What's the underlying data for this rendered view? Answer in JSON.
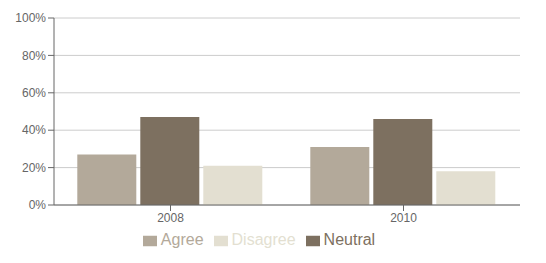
{
  "chart_data": {
    "type": "bar",
    "categories": [
      "2008",
      "2010"
    ],
    "series": [
      {
        "name": "Agree",
        "color": "#b3a99a",
        "values": [
          27,
          31
        ]
      },
      {
        "name": "Neutral",
        "color": "#7d7060",
        "values": [
          47,
          46
        ]
      },
      {
        "name": "Disagree",
        "color": "#e3dfd1",
        "values": [
          21,
          18
        ]
      }
    ],
    "ylim": [
      0,
      100
    ],
    "yticks": [
      {
        "value": 0,
        "label": "0%"
      },
      {
        "value": 20,
        "label": "20%"
      },
      {
        "value": 40,
        "label": "40%"
      },
      {
        "value": 60,
        "label": "60%"
      },
      {
        "value": 80,
        "label": "80%"
      },
      {
        "value": 100,
        "label": "100%"
      }
    ],
    "grid": true,
    "legend": "bottom"
  }
}
